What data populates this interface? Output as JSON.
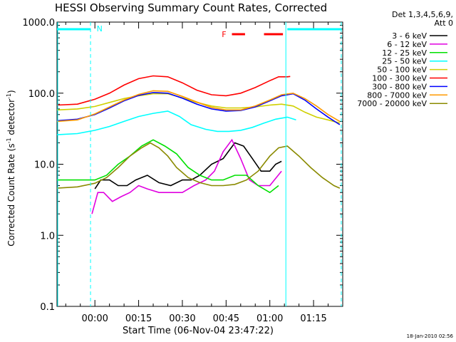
{
  "chart_data": {
    "type": "line",
    "title": "HESSI Observing Summary Count Rates, Corrected",
    "xlabel": "Start Time (06-Nov-04 23:47:22)",
    "ylabel_main": "Corrected Count Rate (s",
    "ylabel_sup1": "-1",
    "ylabel_mid": " detector",
    "ylabel_sup2": "-1",
    "ylabel_end": ")",
    "y_scale": "log",
    "ylim": [
      0.1,
      1000
    ],
    "xlim_minutes": [
      -13,
      85
    ],
    "x_ticks": [
      {
        "m": 0,
        "label": "00:00"
      },
      {
        "m": 15,
        "label": "00:15"
      },
      {
        "m": 30,
        "label": "00:30"
      },
      {
        "m": 45,
        "label": "00:45"
      },
      {
        "m": 60,
        "label": "01:00"
      },
      {
        "m": 75,
        "label": "01:15"
      }
    ],
    "y_ticks": [
      {
        "v": 1000,
        "label": "1000.0"
      },
      {
        "v": 100,
        "label": "100.0"
      },
      {
        "v": 10,
        "label": "10.0"
      },
      {
        "v": 1,
        "label": "1.0"
      },
      {
        "v": 0.1,
        "label": "0.1"
      }
    ],
    "legend_header_1": "Det 1,3,4,5,6,9,",
    "legend_header_2": "Att 0",
    "legend_placement": "right",
    "series": [
      {
        "name": "3 - 6 keV",
        "color": "#000000",
        "points": [
          [
            0,
            4.5
          ],
          [
            2,
            6
          ],
          [
            5,
            6
          ],
          [
            8,
            5
          ],
          [
            11,
            5
          ],
          [
            14,
            6
          ],
          [
            18,
            7
          ],
          [
            22,
            5.5
          ],
          [
            26,
            5
          ],
          [
            30,
            6
          ],
          [
            33,
            6
          ],
          [
            36,
            7
          ],
          [
            40,
            10
          ],
          [
            44,
            12
          ],
          [
            48,
            20
          ],
          [
            51,
            18
          ],
          [
            54,
            12
          ],
          [
            57,
            8
          ],
          [
            60,
            8
          ],
          [
            62,
            10
          ],
          [
            64,
            11
          ]
        ]
      },
      {
        "name": "6 - 12 keV",
        "color": "#e000e0",
        "points": [
          [
            -1,
            2
          ],
          [
            1,
            4
          ],
          [
            3,
            4
          ],
          [
            6,
            3
          ],
          [
            9,
            3.5
          ],
          [
            12,
            4
          ],
          [
            15,
            5
          ],
          [
            18,
            4.5
          ],
          [
            22,
            4
          ],
          [
            26,
            4
          ],
          [
            30,
            4
          ],
          [
            34,
            5
          ],
          [
            38,
            6
          ],
          [
            41,
            8
          ],
          [
            44,
            15
          ],
          [
            47,
            22
          ],
          [
            50,
            12
          ],
          [
            53,
            6
          ],
          [
            56,
            5
          ],
          [
            60,
            5
          ],
          [
            64,
            8
          ]
        ]
      },
      {
        "name": "12 - 25 keV",
        "color": "#00e000",
        "points": [
          [
            -13,
            6
          ],
          [
            -5,
            6
          ],
          [
            0,
            6
          ],
          [
            4,
            7
          ],
          [
            8,
            10
          ],
          [
            12,
            13
          ],
          [
            16,
            18
          ],
          [
            20,
            22
          ],
          [
            24,
            18
          ],
          [
            28,
            14
          ],
          [
            32,
            9
          ],
          [
            36,
            7
          ],
          [
            40,
            6
          ],
          [
            44,
            6
          ],
          [
            48,
            7
          ],
          [
            52,
            7
          ],
          [
            56,
            5
          ],
          [
            60,
            4
          ],
          [
            63,
            5
          ]
        ]
      },
      {
        "name": "25 - 50 keV",
        "color": "#00ffff",
        "points": [
          [
            -13,
            26
          ],
          [
            -6,
            27
          ],
          [
            0,
            30
          ],
          [
            5,
            34
          ],
          [
            10,
            40
          ],
          [
            15,
            47
          ],
          [
            20,
            52
          ],
          [
            25,
            56
          ],
          [
            29,
            47
          ],
          [
            33,
            36
          ],
          [
            38,
            31
          ],
          [
            42,
            29
          ],
          [
            46,
            29
          ],
          [
            50,
            30
          ],
          [
            54,
            33
          ],
          [
            58,
            38
          ],
          [
            62,
            43
          ],
          [
            66,
            46
          ],
          [
            69,
            42
          ]
        ]
      },
      {
        "name": "50 - 100 keV",
        "color": "#d0d000",
        "points": [
          [
            -13,
            58
          ],
          [
            -6,
            60
          ],
          [
            0,
            65
          ],
          [
            5,
            74
          ],
          [
            10,
            84
          ],
          [
            15,
            92
          ],
          [
            20,
            98
          ],
          [
            25,
            98
          ],
          [
            30,
            86
          ],
          [
            35,
            74
          ],
          [
            40,
            66
          ],
          [
            45,
            62
          ],
          [
            50,
            62
          ],
          [
            55,
            64
          ],
          [
            60,
            68
          ],
          [
            64,
            70
          ],
          [
            68,
            66
          ],
          [
            72,
            54
          ],
          [
            76,
            46
          ],
          [
            80,
            42
          ],
          [
            84,
            38
          ]
        ]
      },
      {
        "name": "100 - 300 keV",
        "color": "#ff0000",
        "points": [
          [
            -13,
            68
          ],
          [
            -6,
            70
          ],
          [
            0,
            82
          ],
          [
            5,
            100
          ],
          [
            10,
            130
          ],
          [
            15,
            160
          ],
          [
            20,
            175
          ],
          [
            25,
            170
          ],
          [
            30,
            140
          ],
          [
            35,
            110
          ],
          [
            40,
            95
          ],
          [
            45,
            92
          ],
          [
            50,
            100
          ],
          [
            55,
            120
          ],
          [
            60,
            150
          ],
          [
            63,
            170
          ],
          [
            66,
            170
          ],
          [
            67,
            172
          ]
        ]
      },
      {
        "name": "300 - 800 keV",
        "color": "#0000ff",
        "points": [
          [
            -13,
            41
          ],
          [
            -6,
            43
          ],
          [
            0,
            50
          ],
          [
            5,
            62
          ],
          [
            10,
            78
          ],
          [
            15,
            93
          ],
          [
            20,
            102
          ],
          [
            25,
            100
          ],
          [
            30,
            85
          ],
          [
            35,
            70
          ],
          [
            40,
            60
          ],
          [
            45,
            56
          ],
          [
            50,
            57
          ],
          [
            55,
            64
          ],
          [
            60,
            78
          ],
          [
            64,
            92
          ],
          [
            68,
            98
          ],
          [
            72,
            80
          ],
          [
            76,
            60
          ],
          [
            80,
            46
          ],
          [
            84,
            36
          ]
        ]
      },
      {
        "name": "800 - 7000 keV",
        "color": "#ff9900",
        "points": [
          [
            -13,
            40
          ],
          [
            -6,
            42
          ],
          [
            0,
            51
          ],
          [
            5,
            64
          ],
          [
            10,
            80
          ],
          [
            15,
            96
          ],
          [
            20,
            108
          ],
          [
            25,
            106
          ],
          [
            30,
            90
          ],
          [
            35,
            75
          ],
          [
            40,
            63
          ],
          [
            45,
            58
          ],
          [
            50,
            58
          ],
          [
            55,
            66
          ],
          [
            60,
            80
          ],
          [
            64,
            95
          ],
          [
            68,
            100
          ],
          [
            72,
            84
          ],
          [
            76,
            66
          ],
          [
            80,
            50
          ],
          [
            84,
            40
          ]
        ]
      },
      {
        "name": "7000 - 20000 keV",
        "color": "#8a8a00",
        "points": [
          [
            -13,
            4.6
          ],
          [
            -6,
            4.8
          ],
          [
            0,
            5.4
          ],
          [
            4,
            6.5
          ],
          [
            8,
            9
          ],
          [
            12,
            13
          ],
          [
            16,
            17
          ],
          [
            19,
            20
          ],
          [
            22,
            17
          ],
          [
            25,
            13
          ],
          [
            28,
            9
          ],
          [
            32,
            6.5
          ],
          [
            36,
            5.5
          ],
          [
            40,
            5
          ],
          [
            44,
            5
          ],
          [
            48,
            5.2
          ],
          [
            52,
            6
          ],
          [
            56,
            8
          ],
          [
            60,
            13
          ],
          [
            63,
            17
          ],
          [
            66,
            18
          ],
          [
            70,
            13
          ],
          [
            74,
            9
          ],
          [
            78,
            6.5
          ],
          [
            82,
            5
          ],
          [
            84,
            4.6
          ]
        ]
      }
    ],
    "flag_label_N": "N",
    "flag_label_F": "F",
    "timestamp": "18-Jan-2010 02:56"
  }
}
